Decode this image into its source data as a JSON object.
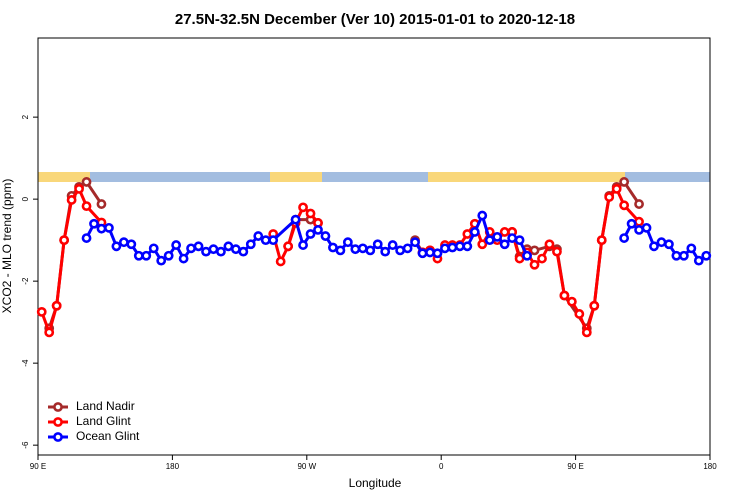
{
  "chart_data": {
    "type": "line",
    "title": "27.5N-32.5N December (Ver 10)   2015-01-01 to 2020-12-18",
    "x_label": "Longitude",
    "y_label": "XCO2 - MLO trend (ppm)",
    "xlim": [
      90,
      540
    ],
    "ylim": [
      -6.24,
      3.93
    ],
    "xticks": [
      {
        "value": 90,
        "label": "90 E"
      },
      180,
      {
        "value": 270,
        "label": "90 W"
      },
      {
        "value": 360,
        "label": "0"
      },
      {
        "value": 450,
        "label": "90 E"
      },
      {
        "value": 540,
        "label": "180"
      }
    ],
    "yticks": [
      2,
      0,
      -2,
      -4,
      -6
    ],
    "legend": "bottomleft",
    "series": [
      {
        "name": "Land Nadir",
        "color": "#a52a2a",
        "x": [
          97.5,
          102.5,
          107.5,
          112.5,
          117.5,
          122.5,
          132.5,
          137.5,
          257.5,
          262.5,
          272.5,
          277.5,
          282.5,
          342.5,
          347.5,
          352.5,
          357.5,
          407.5,
          412.5,
          417.5,
          422.5,
          432.5,
          437.5,
          442.5,
          457.5,
          462.5,
          467.5,
          472.5,
          477.5,
          482.5,
          492.5
        ],
        "values": [
          -3.15,
          -2.6,
          -1.0,
          0.08,
          0.3,
          0.42,
          -0.12,
          null,
          -1.15,
          -0.5,
          -0.5,
          -0.58,
          null,
          -1.0,
          -1.3,
          -1.25,
          null,
          -0.8,
          -1.4,
          -1.22,
          -1.25,
          -1.15,
          -1.22,
          -2.35,
          -3.15,
          -2.6,
          -1.0,
          0.08,
          0.3,
          0.42,
          -0.12
        ]
      },
      {
        "name": "Land Glint",
        "color": "#ff0000",
        "x": [
          92.5,
          97.5,
          102.5,
          107.5,
          112.5,
          117.5,
          122.5,
          132.5,
          137.5,
          247.5,
          252.5,
          257.5,
          262.5,
          267.5,
          272.5,
          277.5,
          282.5,
          347.5,
          352.5,
          357.5,
          362.5,
          367.5,
          372.5,
          377.5,
          382.5,
          387.5,
          392.5,
          397.5,
          402.5,
          407.5,
          412.5,
          417.5,
          422.5,
          427.5,
          432.5,
          437.5,
          442.5,
          447.5,
          452.5,
          457.5,
          462.5,
          467.5,
          472.5,
          477.5,
          482.5,
          492.5
        ],
        "values": [
          -2.75,
          -3.25,
          -2.6,
          -1.0,
          -0.02,
          0.25,
          -0.17,
          -0.57,
          null,
          -0.85,
          -1.52,
          -1.15,
          -0.58,
          -0.2,
          -0.35,
          -0.58,
          null,
          -1.3,
          -1.25,
          -1.45,
          -1.12,
          -1.12,
          -1.12,
          -0.85,
          -0.6,
          -1.1,
          -0.8,
          -1.0,
          -0.8,
          -0.8,
          -1.45,
          -1.3,
          -1.6,
          -1.45,
          -1.1,
          -1.28,
          -2.35,
          -2.5,
          -2.8,
          -3.25,
          -2.6,
          -1.0,
          0.05,
          0.25,
          -0.15,
          -0.55
        ]
      },
      {
        "name": "Ocean Glint",
        "color": "#0000ff",
        "x": [
          122.5,
          127.5,
          132.5,
          137.5,
          142.5,
          147.5,
          152.5,
          157.5,
          162.5,
          167.5,
          172.5,
          177.5,
          182.5,
          187.5,
          192.5,
          197.5,
          202.5,
          207.5,
          212.5,
          217.5,
          222.5,
          227.5,
          232.5,
          237.5,
          242.5,
          247.5,
          262.5,
          267.5,
          272.5,
          277.5,
          282.5,
          287.5,
          292.5,
          297.5,
          302.5,
          307.5,
          312.5,
          317.5,
          322.5,
          327.5,
          332.5,
          337.5,
          342.5,
          347.5,
          352.5,
          357.5,
          362.5,
          367.5,
          372.5,
          377.5,
          382.5,
          387.5,
          392.5,
          397.5,
          402.5,
          407.5,
          412.5,
          417.5,
          422.5,
          482.5,
          487.5,
          492.5,
          497.5,
          502.5,
          507.5,
          512.5,
          517.5,
          522.5,
          527.5,
          532.5,
          537.5
        ],
        "values": [
          -0.95,
          -0.6,
          -0.72,
          -0.7,
          -1.15,
          -1.05,
          -1.1,
          -1.38,
          -1.38,
          -1.2,
          -1.5,
          -1.38,
          -1.12,
          -1.45,
          -1.2,
          -1.15,
          -1.28,
          -1.22,
          -1.28,
          -1.15,
          -1.22,
          -1.28,
          -1.1,
          -0.9,
          -1.0,
          -1.0,
          -0.5,
          -1.12,
          -0.85,
          -0.75,
          -0.9,
          -1.18,
          -1.25,
          -1.05,
          -1.22,
          -1.2,
          -1.25,
          -1.1,
          -1.28,
          -1.12,
          -1.25,
          -1.2,
          -1.05,
          -1.32,
          -1.3,
          -1.32,
          -1.2,
          -1.18,
          -1.15,
          -1.15,
          -0.8,
          -0.4,
          -1.0,
          -0.92,
          -1.1,
          -0.95,
          -1.0,
          -1.38,
          null,
          -0.95,
          -0.6,
          -0.75,
          -0.7,
          -1.15,
          -1.05,
          -1.1,
          -1.38,
          -1.38,
          -1.2,
          -1.5,
          -1.38
        ]
      }
    ]
  }
}
